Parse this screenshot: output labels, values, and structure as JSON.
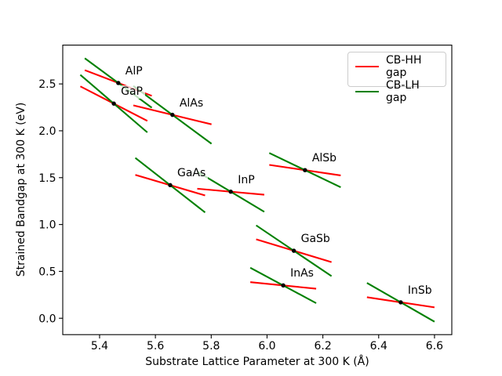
{
  "figure": {
    "background": "#ffffff"
  },
  "chart_data": {
    "type": "line",
    "title": "",
    "xlabel": "Substrate Lattice Parameter at 300 K (Å)",
    "ylabel": "Strained Bandgap at 300 K (eV)",
    "xlim": [
      5.268,
      6.662
    ],
    "ylim": [
      -0.175,
      2.914
    ],
    "xticks": [
      5.4,
      5.6,
      5.8,
      6.0,
      6.2,
      6.4,
      6.6
    ],
    "xtick_labels": [
      "5.4",
      "5.6",
      "5.8",
      "6.0",
      "6.2",
      "6.4",
      "6.6"
    ],
    "yticks": [
      0.0,
      0.5,
      1.0,
      1.5,
      2.0,
      2.5
    ],
    "ytick_labels": [
      "0.0",
      "0.5",
      "1.0",
      "1.5",
      "2.0",
      "2.5"
    ],
    "grid": false,
    "colors": {
      "cb_hh": "#ff0000",
      "cb_lh": "#008000",
      "marker": "#000000",
      "axes": "#000000"
    },
    "legend": {
      "position": "upper right",
      "entries": [
        {
          "label": "CB-HH gap",
          "color": "#ff0000"
        },
        {
          "label": "CB-LH gap",
          "color": "#008000"
        }
      ]
    },
    "materials": [
      {
        "name": "AlP",
        "a0": 5.467,
        "E0": 2.51,
        "hh_slope": -1.14,
        "lh_slope": -2.2,
        "half_range": 0.12,
        "hh_segment": [
          [
            5.347,
            2.647
          ],
          [
            5.587,
            2.373
          ]
        ],
        "lh_segment": [
          [
            5.347,
            2.774
          ],
          [
            5.587,
            2.246
          ]
        ]
      },
      {
        "name": "GaP",
        "a0": 5.451,
        "E0": 2.29,
        "hh_slope": -1.53,
        "lh_slope": -2.56,
        "half_range": 0.12,
        "hh_segment": [
          [
            5.331,
            2.474
          ],
          [
            5.571,
            2.106
          ]
        ],
        "lh_segment": [
          [
            5.331,
            2.597
          ],
          [
            5.571,
            1.983
          ]
        ]
      },
      {
        "name": "AlAs",
        "a0": 5.661,
        "E0": 2.17,
        "hh_slope": -0.72,
        "lh_slope": -2.2,
        "half_range": 0.14,
        "hh_segment": [
          [
            5.521,
            2.271
          ],
          [
            5.801,
            2.069
          ]
        ],
        "lh_segment": [
          [
            5.521,
            2.478
          ],
          [
            5.801,
            1.862
          ]
        ]
      },
      {
        "name": "GaAs",
        "a0": 5.653,
        "E0": 1.42,
        "hh_slope": -0.88,
        "lh_slope": -2.33,
        "half_range": 0.125,
        "hh_segment": [
          [
            5.528,
            1.53
          ],
          [
            5.778,
            1.31
          ]
        ],
        "lh_segment": [
          [
            5.528,
            1.711
          ],
          [
            5.778,
            1.129
          ]
        ]
      },
      {
        "name": "InP",
        "a0": 5.87,
        "E0": 1.35,
        "hh_slope": -0.27,
        "lh_slope": -1.78,
        "half_range": 0.12,
        "hh_segment": [
          [
            5.75,
            1.382
          ],
          [
            5.99,
            1.318
          ]
        ],
        "lh_segment": [
          [
            5.75,
            1.564
          ],
          [
            5.99,
            1.136
          ]
        ]
      },
      {
        "name": "AlSb",
        "a0": 6.136,
        "E0": 1.58,
        "hh_slope": -0.44,
        "lh_slope": -1.43,
        "half_range": 0.128,
        "hh_segment": [
          [
            6.008,
            1.636
          ],
          [
            6.264,
            1.524
          ]
        ],
        "lh_segment": [
          [
            6.008,
            1.763
          ],
          [
            6.264,
            1.397
          ]
        ]
      },
      {
        "name": "GaSb",
        "a0": 6.096,
        "E0": 0.72,
        "hh_slope": -0.9,
        "lh_slope": -2.01,
        "half_range": 0.135,
        "hh_segment": [
          [
            5.961,
            0.842
          ],
          [
            6.231,
            0.599
          ]
        ],
        "lh_segment": [
          [
            5.961,
            0.991
          ],
          [
            6.231,
            0.449
          ]
        ]
      },
      {
        "name": "InAs",
        "a0": 6.058,
        "E0": 0.35,
        "hh_slope": -0.3,
        "lh_slope": -1.6,
        "half_range": 0.118,
        "hh_segment": [
          [
            5.94,
            0.385
          ],
          [
            6.176,
            0.315
          ]
        ],
        "lh_segment": [
          [
            5.94,
            0.539
          ],
          [
            6.176,
            0.161
          ]
        ]
      },
      {
        "name": "InSb",
        "a0": 6.479,
        "E0": 0.17,
        "hh_slope": -0.45,
        "lh_slope": -1.71,
        "half_range": 0.121,
        "hh_segment": [
          [
            6.358,
            0.224
          ],
          [
            6.6,
            0.116
          ]
        ],
        "lh_segment": [
          [
            6.358,
            0.377
          ],
          [
            6.6,
            -0.037
          ]
        ]
      }
    ]
  }
}
